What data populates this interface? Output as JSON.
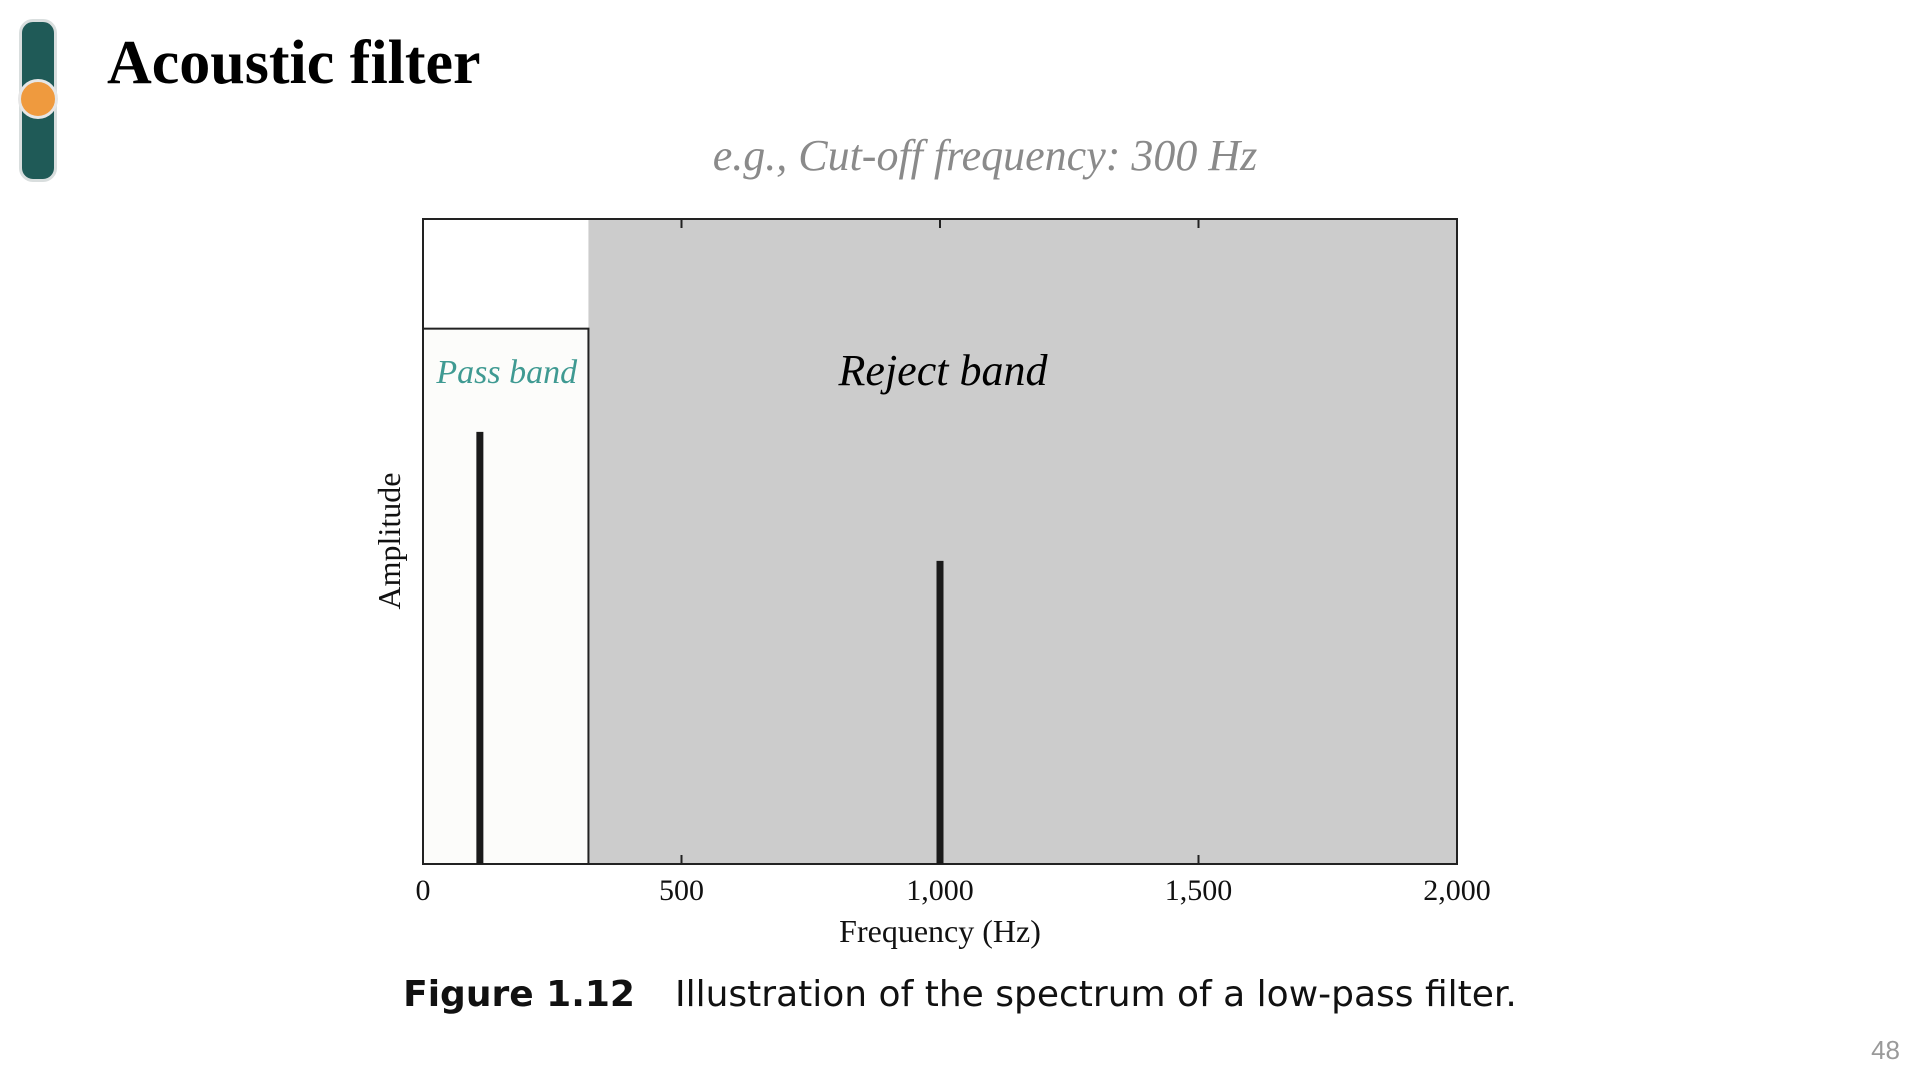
{
  "slide": {
    "title": "Acoustic filter",
    "subtitle": "e.g., Cut-off frequency: 300 Hz",
    "page_number": "48"
  },
  "caption": {
    "label": "Figure 1.12",
    "text": "Illustration of the spectrum of a low-pass filter."
  },
  "chart_data": {
    "type": "bar",
    "title": "",
    "xlabel": "Frequency (Hz)",
    "ylabel": "Amplitude",
    "xlim": [
      0,
      2000
    ],
    "ylim": [
      0,
      1
    ],
    "xticks": [
      0,
      500,
      1000,
      1500,
      2000
    ],
    "xtick_labels": [
      "0",
      "500",
      "1,000",
      "1,500",
      "2,000"
    ],
    "grid": false,
    "series": [
      {
        "x": [
          110,
          1000
        ],
        "values": [
          0.67,
          0.47
        ]
      }
    ],
    "regions": [
      {
        "label": "Pass band",
        "x_start": 0,
        "x_end": 320,
        "y_top": 0.83,
        "color": "#fcfcfa",
        "label_color": "#3f9a92"
      },
      {
        "label": "Reject band",
        "x_start": 320,
        "x_end": 2000,
        "y_top": 1.0,
        "color": "#cccccc",
        "label_color": "#000000"
      }
    ],
    "colors": {
      "stem": "#1a1a1a",
      "frame": "#222222"
    }
  }
}
